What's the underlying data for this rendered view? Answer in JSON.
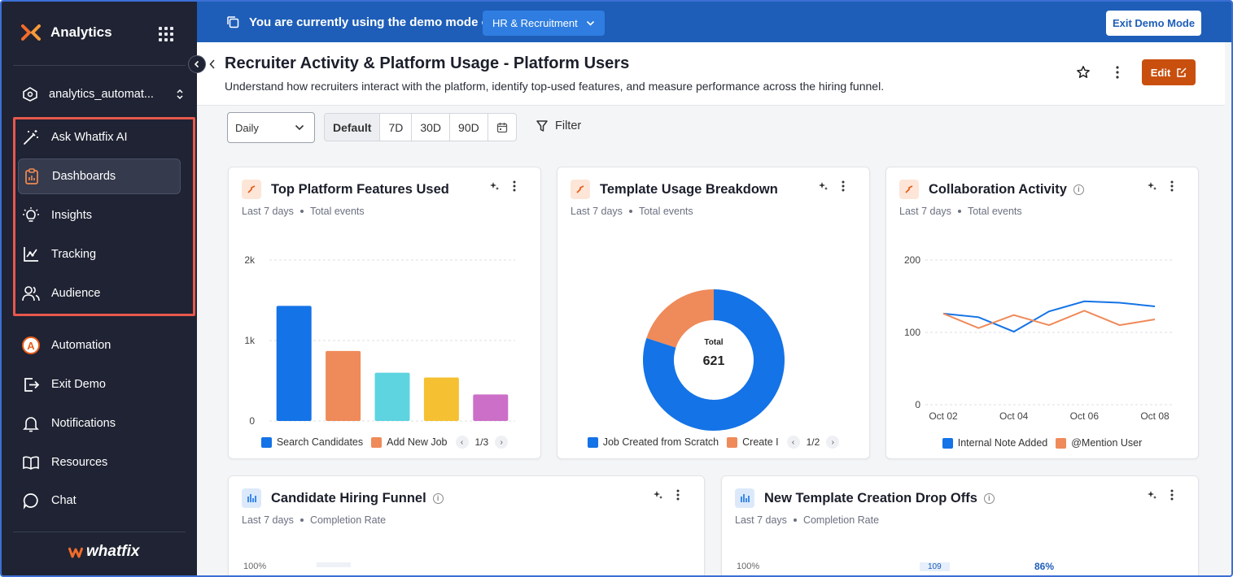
{
  "sidebar": {
    "brand": "Analytics",
    "workspace": "analytics_automat...",
    "items_primary": [
      {
        "label": "Ask Whatfix AI",
        "icon": "magic-wand-icon"
      },
      {
        "label": "Dashboards",
        "icon": "clipboard-chart-icon",
        "active": true
      },
      {
        "label": "Insights",
        "icon": "lightbulb-icon"
      },
      {
        "label": "Tracking",
        "icon": "tracking-chart-icon"
      },
      {
        "label": "Audience",
        "icon": "users-icon"
      }
    ],
    "items_secondary": [
      {
        "label": "Automation",
        "icon": "automation-a-icon"
      },
      {
        "label": "Exit Demo",
        "icon": "exit-icon"
      },
      {
        "label": "Notifications",
        "icon": "bell-icon"
      },
      {
        "label": "Resources",
        "icon": "book-icon"
      },
      {
        "label": "Chat",
        "icon": "chat-icon"
      }
    ],
    "footer_logo": "whatfix"
  },
  "banner": {
    "text": "You are currently using the demo mode of:",
    "selected_mode": "HR & Recruitment",
    "exit_label": "Exit Demo Mode"
  },
  "header": {
    "title": "Recruiter Activity & Platform Usage - Platform Users",
    "subtitle": "Understand how recruiters interact with the platform, identify top-used features, and measure performance across the hiring funnel.",
    "edit_label": "Edit"
  },
  "toolbar": {
    "granularity": "Daily",
    "ranges": [
      "Default",
      "7D",
      "30D",
      "90D"
    ],
    "active_range": "Default",
    "filter_label": "Filter"
  },
  "colors": {
    "accent": "#c94f0e",
    "banner": "#1e5eb8",
    "sidebar": "#1f2333",
    "highlight": "#e8584c"
  },
  "cards": {
    "features": {
      "title": "Top Platform Features Used",
      "period": "Last 7 days",
      "metric": "Total events",
      "legend": [
        "Search Candidates",
        "Add New Job"
      ],
      "page": "1/3"
    },
    "templates": {
      "title": "Template Usage Breakdown",
      "period": "Last 7 days",
      "metric": "Total events",
      "center_label": "Total",
      "center_value": "621",
      "legend": [
        "Job Created from Scratch",
        "Create I"
      ],
      "page": "1/2"
    },
    "collab": {
      "title": "Collaboration Activity",
      "period": "Last 7 days",
      "metric": "Total events",
      "legend": [
        "Internal Note Added",
        "@Mention User"
      ]
    },
    "funnel": {
      "title": "Candidate Hiring Funnel",
      "period": "Last 7 days",
      "metric": "Completion Rate",
      "peek_label": "100%"
    },
    "dropoffs": {
      "title": "New Template Creation Drop Offs",
      "period": "Last 7 days",
      "metric": "Completion Rate",
      "peek_label": "100%",
      "peek_values": [
        "109",
        "86%"
      ]
    }
  },
  "chart_data": [
    {
      "type": "bar",
      "categories": [
        "Search Candidates",
        "Add New Job",
        "",
        "",
        ""
      ],
      "values": [
        1430,
        870,
        600,
        540,
        330
      ],
      "colors": [
        "#1473e6",
        "#ef8a5a",
        "#5dd4e0",
        "#f5c133",
        "#cc6fc8"
      ],
      "yticks": [
        "0",
        "1k",
        "2k"
      ],
      "ylim": [
        0,
        2000
      ]
    },
    {
      "type": "pie",
      "labels": [
        "Job Created from Scratch",
        "Create I"
      ],
      "values": [
        497,
        124
      ],
      "colors": [
        "#1473e6",
        "#ef8a5a"
      ]
    },
    {
      "type": "line",
      "x": [
        "Oct 02",
        "Oct 03",
        "Oct 04",
        "Oct 05",
        "Oct 06",
        "Oct 07",
        "Oct 08"
      ],
      "xticks": [
        "Oct 02",
        "Oct 04",
        "Oct 06",
        "Oct 08"
      ],
      "yticks": [
        "0",
        "100",
        "200"
      ],
      "ylim": [
        0,
        200
      ],
      "series": [
        {
          "name": "Internal Note Added",
          "color": "#1473e6",
          "values": [
            126,
            121,
            101,
            129,
            143,
            141,
            136
          ]
        },
        {
          "name": "@Mention User",
          "color": "#ef8a5a",
          "values": [
            126,
            106,
            124,
            110,
            130,
            110,
            118
          ]
        }
      ]
    }
  ]
}
